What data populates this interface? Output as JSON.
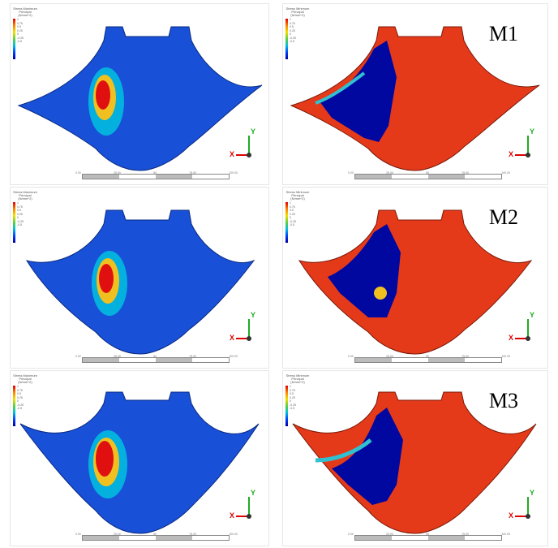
{
  "rows": [
    {
      "label": "M1",
      "left": {
        "legend_title": "Stress\nMaximum Principal\n(N/mm^2)",
        "ticks": [
          "1",
          "0.75",
          "0.5",
          "0.25",
          "0",
          "-0.25",
          "-0.5"
        ]
      },
      "right": {
        "legend_title": "Stress\nMinimum Principal\n(N/mm^2)",
        "ticks": [
          "1",
          "0.75",
          "0.5",
          "0.25",
          "0",
          "-0.25",
          "-0.5"
        ]
      }
    },
    {
      "label": "M2",
      "left": {
        "legend_title": "Stress\nMaximum Principal\n(N/mm^2)",
        "ticks": [
          "1",
          "0.75",
          "0.5",
          "0.25",
          "0",
          "-0.25",
          "-0.5"
        ]
      },
      "right": {
        "legend_title": "Stress\nMinimum Principal\n(N/mm^2)",
        "ticks": [
          "1",
          "0.75",
          "0.5",
          "0.25",
          "0",
          "-0.25",
          "-0.5"
        ]
      }
    },
    {
      "label": "M3",
      "left": {
        "legend_title": "Stress\nMaximum Principal\n(N/mm^2)",
        "ticks": [
          "1",
          "0.75",
          "0.5",
          "0.25",
          "0",
          "-0.25",
          "-0.5"
        ]
      },
      "right": {
        "legend_title": "Stress\nMinimum Principal\n(N/mm^2)",
        "ticks": [
          "1",
          "0.75",
          "0.5",
          "0.25",
          "0",
          "-0.25",
          "-0.5"
        ]
      }
    }
  ],
  "scale_ticks": [
    "0.00",
    "25.00",
    "50",
    "75.00",
    "100.00"
  ],
  "triad": {
    "x_label": "X",
    "y_label": "Y"
  },
  "colors": {
    "high": "#e00000",
    "mid": "#00c0e0",
    "low": "#0033cc",
    "min_field": "#e53a1a",
    "min_low": "#0008a0"
  }
}
